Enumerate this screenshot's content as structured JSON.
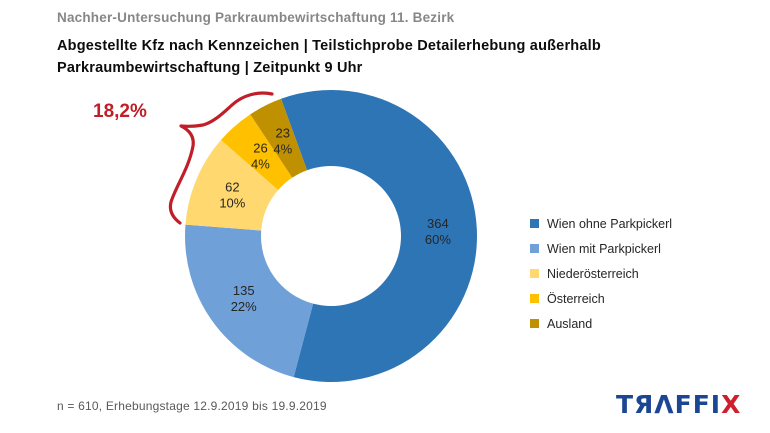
{
  "header": {
    "eyebrow": "Nachher-Untersuchung Parkraumbewirtschaftung 11. Bezirk",
    "title": "Abgestellte Kfz nach Kennzeichen | Teilstichprobe Detailerhebung außerhalb Parkraumbewirtschaftung | Zeitpunkt 9 Uhr"
  },
  "chart_data": {
    "type": "pie",
    "subtype": "donut",
    "title": "Abgestellte Kfz nach Kennzeichen | Teilstichprobe Detailerhebung außerhalb Parkraumbewirtschaftung | Zeitpunkt 9 Uhr",
    "categories": [
      "Wien ohne Parkpickerl",
      "Wien mit Parkpickerl",
      "Niederösterreich",
      "Österreich",
      "Ausland"
    ],
    "values": [
      364,
      135,
      62,
      26,
      23
    ],
    "percent_labels": [
      "60%",
      "22%",
      "10%",
      "4%",
      "4%"
    ],
    "colors": [
      "#2e75b6",
      "#6fa0d8",
      "#ffd970",
      "#ffc000",
      "#bf9000"
    ],
    "total": 610,
    "donut_hole_ratio": 0.48,
    "start_angle_deg": -20,
    "legend_position": "right",
    "annotation": {
      "text": "18,2%",
      "color": "#c01e28",
      "refers_to": "Niederösterreich + Österreich + Ausland"
    }
  },
  "footer": {
    "note": "n = 610, Erhebungstage 12.9.2019 bis 19.9.2019"
  },
  "logo": {
    "name": "TRAFFIX",
    "text_blue": "TЯΛFFI",
    "text_red": "X"
  }
}
